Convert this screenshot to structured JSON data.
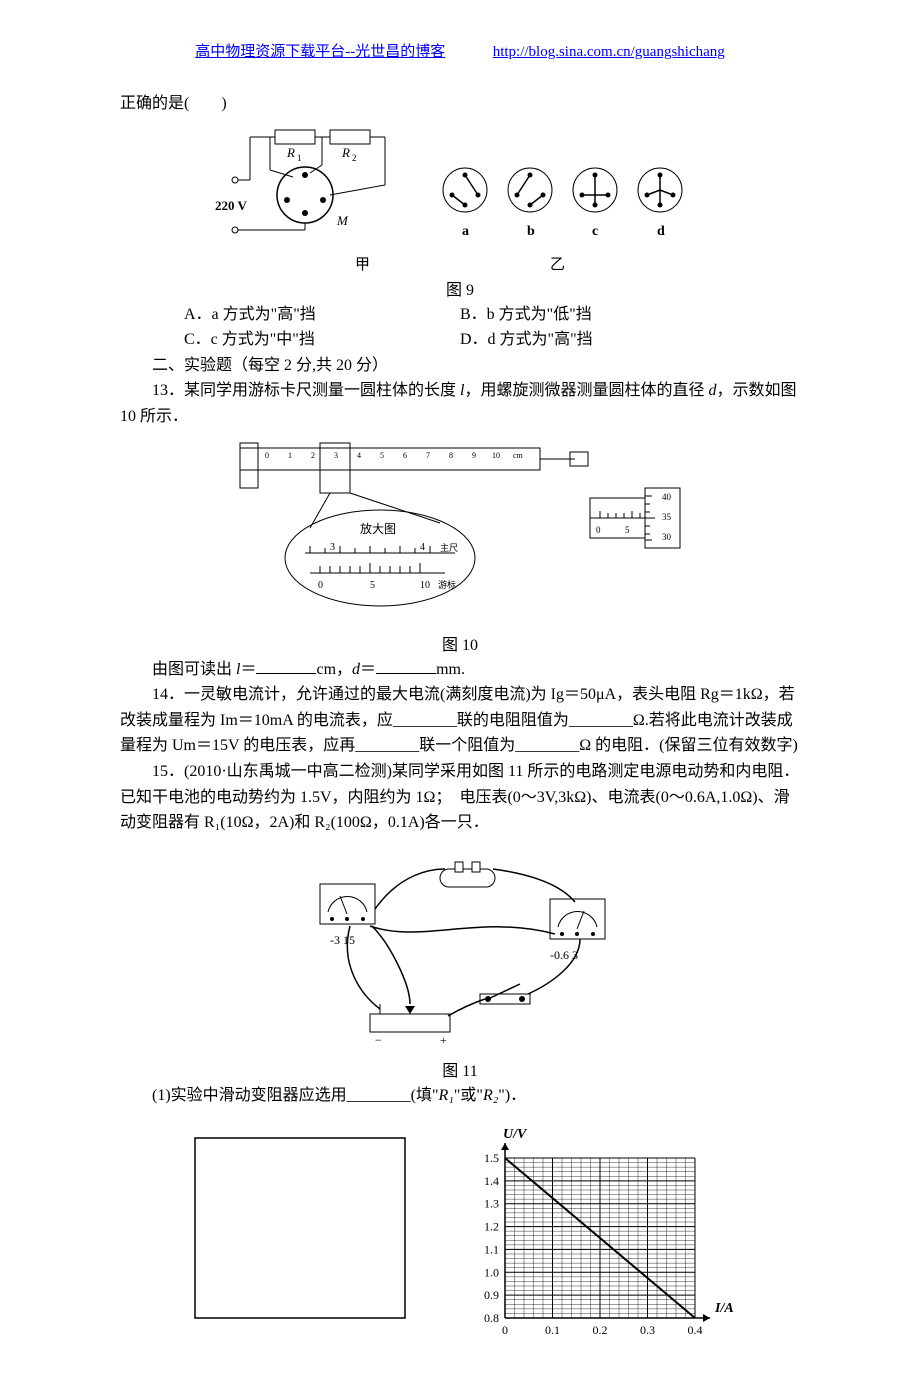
{
  "header": {
    "left_text": "高中物理资源下载平台--光世昌的博客",
    "url": "http://blog.sina.com.cn/guangshichang"
  },
  "q12": {
    "tail": "正确的是(　　)",
    "circuit": {
      "voltage": "220 V",
      "labels": {
        "R1": "R₁",
        "R2": "R₂",
        "M": "M"
      },
      "sub_left": "甲",
      "sub_right": "乙",
      "switch_labels": [
        "a",
        "b",
        "c",
        "d"
      ]
    },
    "caption": "图 9",
    "options": {
      "A": "A．a 方式为\"高\"挡",
      "B": "B．b 方式为\"低\"挡",
      "C": "C．c 方式为\"中\"挡",
      "D": "D．d 方式为\"高\"挡"
    }
  },
  "section2": "二、实验题（每空 2 分,共 20 分）",
  "q13": {
    "text_a": "13．某同学用游标卡尺测量一圆柱体的长度 ",
    "l": "l",
    "text_b": "，用螺旋测微器测量圆柱体的直径 ",
    "d": "d",
    "text_c": "，示数如图 10 所示．",
    "vernier": {
      "main_marks": [
        "0",
        "1",
        "2",
        "3",
        "4",
        "5",
        "6",
        "7",
        "8",
        "9",
        "10"
      ],
      "unit": "cm",
      "zoom_label": "放大图",
      "zoom_top": [
        "3",
        "4"
      ],
      "zoom_top_unit": "主尺",
      "zoom_bottom": [
        "0",
        "5",
        "10"
      ],
      "zoom_bottom_unit": "游标"
    },
    "micrometer": {
      "sleeve": [
        "0",
        "5"
      ],
      "thimble": [
        "40",
        "35",
        "30"
      ]
    },
    "caption": "图 10",
    "read_a": "由图可读出 ",
    "read_b": "＝",
    "unit1": "cm，",
    "read_c": "＝",
    "unit2": "mm."
  },
  "q14": {
    "text": "14．一灵敏电流计，允许通过的最大电流(满刻度电流)为 Ig＝50μA，表头电阻 Rg＝1kΩ，若改装成量程为 Im＝10mA 的电流表，应________联的电阻阻值为________Ω.若将此电流计改装成量程为 Um＝15V 的电压表，应再________联一个阻值为________Ω 的电阻．(保留三位有效数字)"
  },
  "q15": {
    "text": "15．(2010·山东禹城一中高二检测)某同学采用如图 11 所示的电路测定电源电动势和内电阻．已知干电池的电动势约为 1.5V，内阻约为 1Ω；　电压表(0～3V,3kΩ)、电流表(0～0.6A,1.0Ω)、滑动变阻器有 R₁(10Ω，2A)和 R₂(100Ω，0.1A)各一只．",
    "meters": {
      "left": "-3  15",
      "right": "-0.6  3"
    },
    "caption": "图 11",
    "sub1_a": "(1)实验中滑动变阻器应选用________(填\"",
    "sub1_r1": "R₁",
    "sub1_mid": "\"或\"",
    "sub1_r2": "R₂",
    "sub1_b": "\")．",
    "graph": {
      "y_label": "U/V",
      "x_label": "I/A",
      "y_ticks": [
        "1.5",
        "1.4",
        "1.3",
        "1.2",
        "1.1",
        "1.0",
        "0.9",
        "0.8"
      ],
      "x_ticks": [
        "0",
        "0.1",
        "0.2",
        "0.3",
        "0.4"
      ],
      "line": {
        "x1": 0,
        "y1": 1.5,
        "x2": 0.4,
        "y2": 0.8
      },
      "bg": "#ffffff",
      "grid_color": "#000000",
      "axis_color": "#000000"
    }
  }
}
